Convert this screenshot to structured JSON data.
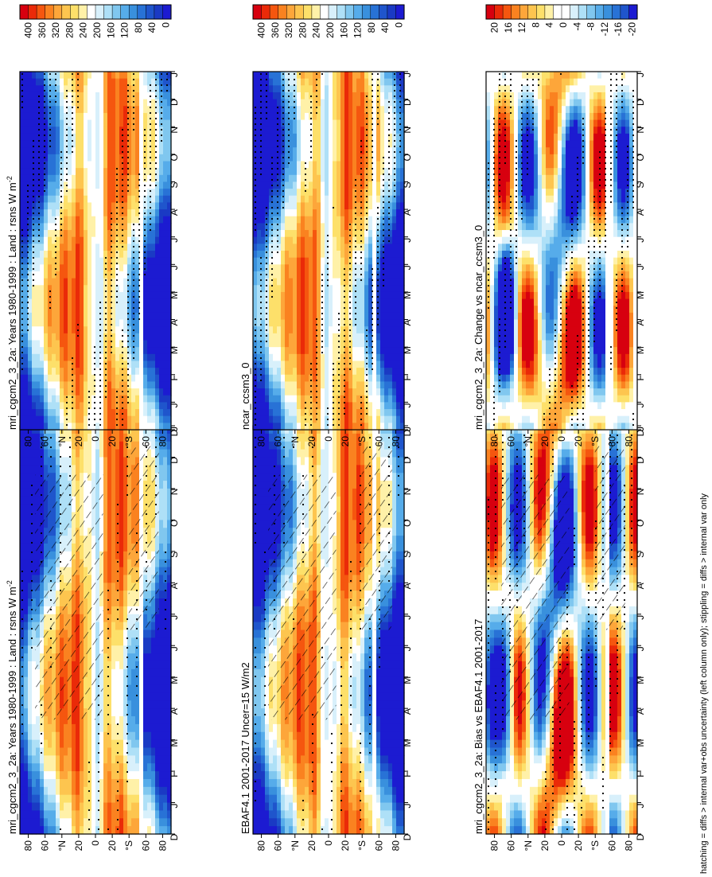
{
  "footer_note": "hatching = diffs > internal var+obs uncertainty (left column only); stippling = diffs > internal var only",
  "chart_data": [
    {
      "id": "p1",
      "type": "heatmap",
      "title": "mri_cgcm2_3_2a: Years 1980-1999 : Land : rsns W m",
      "title_sup": "-2",
      "field": "abs",
      "variant": 0,
      "hatch": true,
      "stipple": "sparse",
      "mask_bands": true
    },
    {
      "id": "p2",
      "type": "heatmap",
      "title": "mri_cgcm2_3_2a: Years 1980-1999 : Land : rsns W m",
      "title_sup": "-2",
      "field": "abs",
      "variant": 1,
      "hatch": false,
      "stipple": "dense",
      "mask_bands": false
    },
    {
      "id": "p3",
      "type": "heatmap",
      "title": "EBAF4.1 2001-2017 Uncer=15 W/m2",
      "title_sup": "",
      "field": "abs",
      "variant": 2,
      "hatch": true,
      "stipple": "sparse",
      "mask_bands": true
    },
    {
      "id": "p4",
      "type": "heatmap",
      "title": "ncar_ccsm3_0",
      "title_sup": "",
      "field": "abs",
      "variant": 3,
      "hatch": false,
      "stipple": "dense",
      "mask_bands": false
    },
    {
      "id": "p5",
      "type": "heatmap",
      "title": "mri_cgcm2_3_2a: Bias vs EBAF4.1 2001-2017",
      "title_sup": "",
      "field": "diff",
      "variant": 4,
      "hatch": true,
      "stipple": "medium",
      "mask_bands": true
    },
    {
      "id": "p6",
      "type": "heatmap",
      "title": "mri_cgcm2_3_2a: Change vs ncar_ccsm3_0",
      "title_sup": "",
      "field": "diff",
      "variant": 5,
      "hatch": false,
      "stipple": "dense",
      "mask_bands": true
    }
  ],
  "axes": {
    "months": [
      "D",
      "J",
      "F",
      "M",
      "A",
      "M",
      "J",
      "J",
      "A",
      "S",
      "O",
      "N",
      "D",
      "J"
    ],
    "lat_labels": [
      "80",
      "60",
      "°N",
      "20",
      "0",
      "20",
      "°S",
      "60",
      "80"
    ],
    "lat_values": [
      80,
      60,
      40,
      20,
      0,
      -20,
      -40,
      -60,
      -80
    ]
  },
  "colorbars": {
    "abs": {
      "labels": [
        "400",
        "360",
        "320",
        "280",
        "240",
        "200",
        "160",
        "120",
        "80",
        "40",
        "0"
      ],
      "colors": [
        "#d7000f",
        "#ea2a08",
        "#f5560f",
        "#fa8220",
        "#fda63a",
        "#fdc54f",
        "#fde06a",
        "#fff1a8",
        "#ffffff",
        "#d8f0fb",
        "#aee0f7",
        "#80c7ef",
        "#56acea",
        "#3990dd",
        "#2872d6",
        "#1f55cc",
        "#1a3ac4",
        "#1c1bd1"
      ]
    },
    "diff": {
      "labels": [
        "20",
        "16",
        "12",
        "8",
        "4",
        "0",
        "-4",
        "-8",
        "-12",
        "-16",
        "-20"
      ],
      "colors": [
        "#d7000f",
        "#ea2a08",
        "#f5560f",
        "#fa8220",
        "#fda63a",
        "#fdc54f",
        "#fde06a",
        "#fff1a8",
        "#ffffff",
        "#ffffff",
        "#d8f0fb",
        "#aee0f7",
        "#80c7ef",
        "#56acea",
        "#3990dd",
        "#2872d6",
        "#1f55cc",
        "#1c1bd1"
      ]
    }
  }
}
